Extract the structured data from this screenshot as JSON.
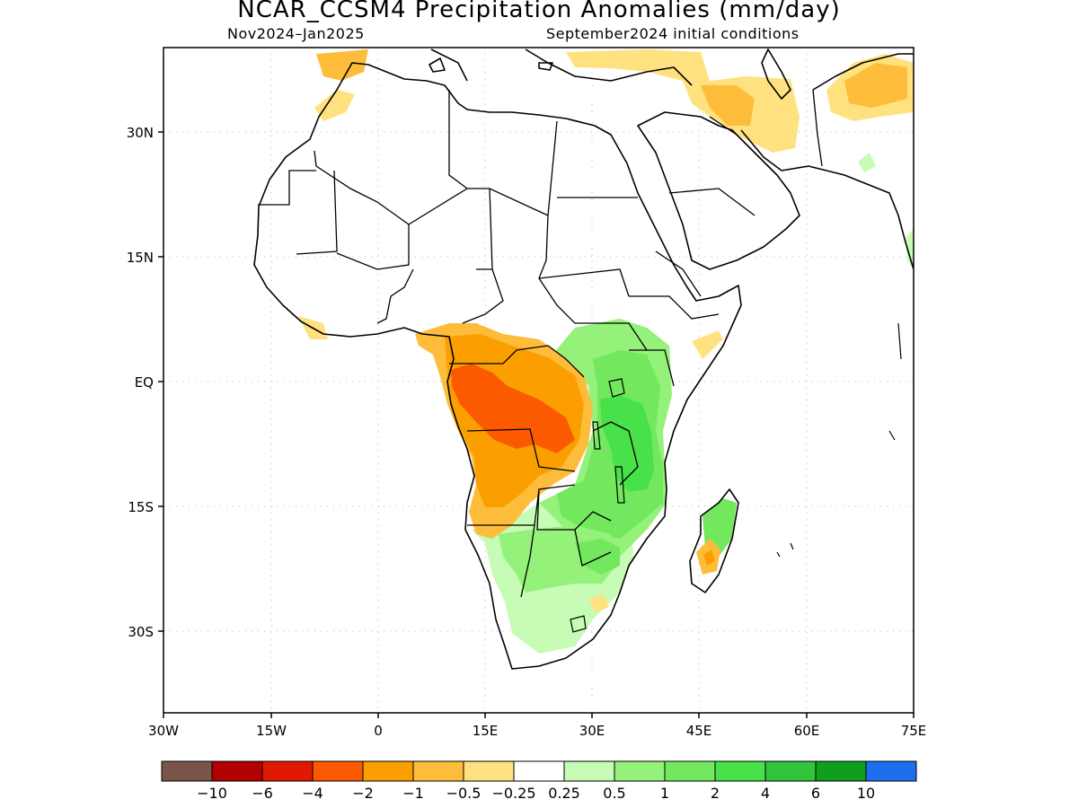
{
  "title": "NCAR_CCSM4 Precipitation Anomalies (mm/day)",
  "subtitle_left": "Nov2024–Jan2025",
  "subtitle_right": "September2024 initial conditions",
  "axes": {
    "y_ticks": [
      "30N",
      "15N",
      "EQ",
      "15S",
      "30S"
    ],
    "x_ticks": [
      "30W",
      "15W",
      "0",
      "15E",
      "30E",
      "45E",
      "60E",
      "75E"
    ]
  },
  "colorbar": {
    "colors": [
      "#7b5449",
      "#b30000",
      "#e01a00",
      "#fb5a00",
      "#fb9f00",
      "#fdbd3a",
      "#ffe27f",
      "#ffffff",
      "#c6fcb5",
      "#94f17a",
      "#73e85f",
      "#48e14a",
      "#32c43c",
      "#0f9f1d",
      "#1e6ff0"
    ],
    "labels": [
      "−10",
      "−6",
      "−4",
      "−2",
      "−1",
      "−0.5",
      "−0.25",
      "0.25",
      "0.5",
      "1",
      "2",
      "4",
      "6",
      "10"
    ]
  },
  "regions": {
    "central_africa": "dry anomaly −2 to −4",
    "east_africa": "wet anomaly 1 to 4",
    "southern_africa": "wet anomaly 0.25 to 2",
    "arabia_iran": "dry anomaly −0.25 to −1",
    "madagascar": "mixed"
  }
}
